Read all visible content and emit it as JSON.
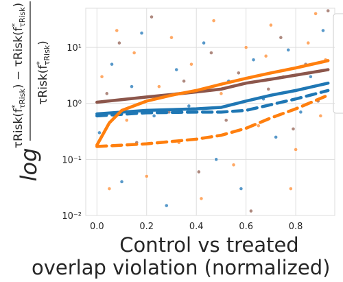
{
  "chart_data": {
    "type": "scatter-line",
    "y_label": {
      "prefix": "log",
      "numerator": [
        {
          "text": "τRisk(f"
        },
        {
          "text": "*",
          "shift": "sup"
        },
        {
          "text": "τRisk",
          "shift": "sub"
        },
        {
          "text": ") − τRisk(f"
        },
        {
          "text": "*",
          "shift": "sup"
        },
        {
          "text": "τRisk",
          "shift": "sub"
        },
        {
          "text": ")"
        }
      ],
      "denominator": [
        {
          "text": "τRisk(f"
        },
        {
          "text": "*",
          "shift": "sup"
        },
        {
          "text": "τRisk",
          "shift": "sub"
        },
        {
          "text": ")"
        }
      ]
    },
    "x_label": [
      "Control vs treated",
      "overlap violation (normalized)"
    ],
    "xlim": [
      -0.045,
      0.957
    ],
    "xticks": [
      {
        "value": 0,
        "label": "0.0"
      },
      0.2,
      0.4,
      0.6,
      0.8
    ],
    "ylim": [
      0.01,
      50
    ],
    "yscale": "log",
    "yticks": [
      {
        "value": 0.01,
        "label": "10⁻²"
      },
      {
        "value": 0.1,
        "label": "10⁻¹"
      },
      {
        "value": 1,
        "label": "10⁰"
      },
      {
        "value": 10,
        "label": "10¹"
      }
    ],
    "grid": true,
    "scatter": [
      {
        "color": "#ff9a4a",
        "x": [
          0.02,
          0.05,
          0.08,
          0.12,
          0.15,
          0.2,
          0.25,
          0.3,
          0.33,
          0.38,
          0.42,
          0.47,
          0.5,
          0.55,
          0.6,
          0.65,
          0.7,
          0.75,
          0.8,
          0.85,
          0.88,
          0.9,
          0.92,
          0.78,
          0.68
        ],
        "values": [
          3,
          0.03,
          20,
          0.5,
          8,
          0.05,
          2,
          15,
          0.2,
          5,
          0.02,
          30,
          1.5,
          0.08,
          10,
          0.4,
          25,
          3,
          0.15,
          12,
          40,
          0.6,
          6,
          0.03,
          7
        ]
      },
      {
        "color": "#3a86c0",
        "x": [
          0.01,
          0.06,
          0.1,
          0.14,
          0.18,
          0.23,
          0.28,
          0.32,
          0.37,
          0.43,
          0.48,
          0.53,
          0.58,
          0.63,
          0.67,
          0.72,
          0.77,
          0.82,
          0.86,
          0.91
        ],
        "values": [
          0.3,
          5,
          0.04,
          2,
          18,
          0.6,
          0.015,
          4,
          0.9,
          12,
          0.1,
          2.5,
          0.03,
          6,
          1.2,
          0.25,
          9,
          0.7,
          3,
          20
        ]
      },
      {
        "color": "#a07468",
        "x": [
          0.04,
          0.09,
          0.16,
          0.22,
          0.29,
          0.35,
          0.41,
          0.46,
          0.52,
          0.57,
          0.62,
          0.69,
          0.74,
          0.79,
          0.84,
          0.89,
          0.93
        ],
        "values": [
          1.5,
          12,
          0.2,
          35,
          0.7,
          2.5,
          0.06,
          8,
          0.5,
          3.5,
          0.012,
          1.8,
          15,
          0.35,
          5,
          1.1,
          45
        ]
      }
    ],
    "series": [
      {
        "color": "#8c564b",
        "style": "solid",
        "x": [
          0,
          0.2,
          0.4,
          0.5,
          0.6,
          0.7,
          0.8,
          0.93
        ],
        "values": [
          1.05,
          1.3,
          1.6,
          1.8,
          2.3,
          2.7,
          3.2,
          4.0
        ]
      },
      {
        "color": "#1f77b4",
        "style": "solid",
        "x": [
          0,
          0.2,
          0.4,
          0.5,
          0.6,
          0.7,
          0.8,
          0.93
        ],
        "values": [
          0.65,
          0.75,
          0.8,
          0.85,
          1.1,
          1.4,
          1.7,
          2.3
        ]
      },
      {
        "color": "#1f77b4",
        "style": "dashed",
        "x": [
          0,
          0.2,
          0.4,
          0.5,
          0.6,
          0.7,
          0.8,
          0.93
        ],
        "values": [
          0.6,
          0.68,
          0.7,
          0.7,
          0.75,
          0.95,
          1.2,
          1.7
        ]
      },
      {
        "color": "#ff7f0e",
        "style": "solid",
        "x": [
          0,
          0.05,
          0.1,
          0.2,
          0.3,
          0.4,
          0.5,
          0.6,
          0.7,
          0.8,
          0.93
        ],
        "values": [
          0.18,
          0.45,
          0.75,
          1.1,
          1.4,
          1.7,
          2.2,
          2.8,
          3.5,
          4.3,
          5.8
        ]
      },
      {
        "color": "#ff7f0e",
        "style": "dashed",
        "x": [
          0,
          0.2,
          0.4,
          0.5,
          0.6,
          0.7,
          0.8,
          0.93
        ],
        "values": [
          0.17,
          0.19,
          0.23,
          0.27,
          0.36,
          0.55,
          0.8,
          1.4
        ]
      }
    ]
  }
}
